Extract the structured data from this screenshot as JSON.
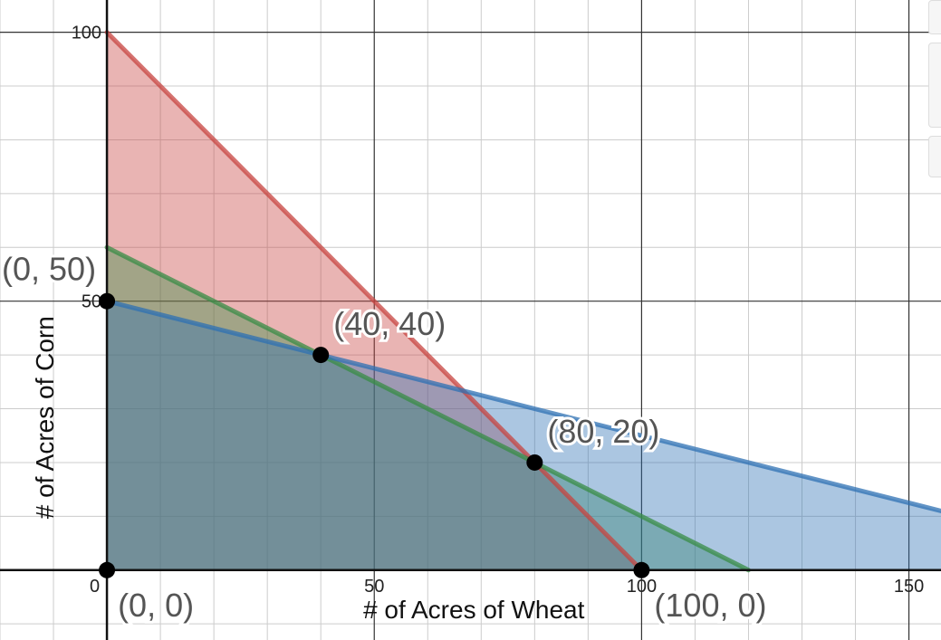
{
  "chart_data": {
    "type": "line",
    "xlabel": "# of Acres of Wheat",
    "ylabel": "# of Acres of Corn",
    "xlim": [
      -20,
      156
    ],
    "ylim": [
      -13,
      106
    ],
    "x_ticks": [
      0,
      50,
      100,
      150
    ],
    "x_tick_labels": [
      "0",
      "50",
      "100",
      "150"
    ],
    "y_ticks": [
      50,
      100
    ],
    "y_tick_labels": [
      "50",
      "100"
    ],
    "grid": true,
    "legend": "none",
    "regions": [
      {
        "color": "#c74440",
        "boundary": [
          [
            0,
            100
          ],
          [
            100,
            0
          ]
        ],
        "polygon": [
          [
            0,
            0
          ],
          [
            0,
            100
          ],
          [
            100,
            0
          ]
        ]
      },
      {
        "color": "#388c46",
        "boundary": [
          [
            0,
            60
          ],
          [
            120,
            0
          ]
        ],
        "polygon": [
          [
            0,
            0
          ],
          [
            0,
            60
          ],
          [
            120,
            0
          ]
        ]
      },
      {
        "color": "#2d70b3",
        "boundary": [
          [
            0,
            50
          ],
          [
            160,
            10
          ]
        ],
        "polygon": [
          [
            0,
            0
          ],
          [
            0,
            50
          ],
          [
            160,
            10
          ],
          [
            160,
            0
          ]
        ]
      }
    ],
    "points": [
      {
        "x": 0,
        "y": 50,
        "label": "(0, 50)"
      },
      {
        "x": 40,
        "y": 40,
        "label": "(40, 40)"
      },
      {
        "x": 80,
        "y": 20,
        "label": "(80, 20)"
      },
      {
        "x": 0,
        "y": 0,
        "label": "(0, 0)"
      },
      {
        "x": 100,
        "y": 0,
        "label": "(100, 0)"
      }
    ]
  }
}
